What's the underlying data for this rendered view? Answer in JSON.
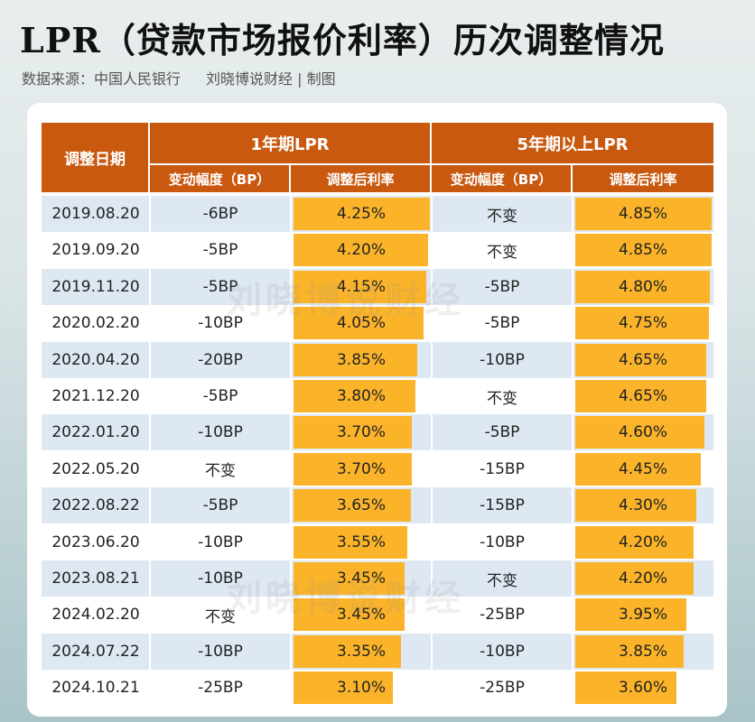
{
  "title": "LPR（贷款市场报价利率）历次调整情况",
  "subtitle": {
    "source": "数据来源：中国人民银行",
    "credit": "刘晓博说财经 | 制图"
  },
  "watermark": "刘晓博说财经",
  "colors": {
    "header": "#c8590f",
    "bar": "#fbb429",
    "row_alt": "#dde8f3"
  },
  "table": {
    "headers": {
      "date": "调整日期",
      "group1": "1年期LPR",
      "group2": "5年期以上LPR",
      "change": "变动幅度（BP）",
      "rate": "调整后利率"
    },
    "rows": [
      {
        "date": "2019.08.20",
        "c1": "-6BP",
        "r1": "4.25%",
        "c5": "不变",
        "r5": "4.85%"
      },
      {
        "date": "2019.09.20",
        "c1": "-5BP",
        "r1": "4.20%",
        "c5": "不变",
        "r5": "4.85%"
      },
      {
        "date": "2019.11.20",
        "c1": "-5BP",
        "r1": "4.15%",
        "c5": "-5BP",
        "r5": "4.80%"
      },
      {
        "date": "2020.02.20",
        "c1": "-10BP",
        "r1": "4.05%",
        "c5": "-5BP",
        "r5": "4.75%"
      },
      {
        "date": "2020.04.20",
        "c1": "-20BP",
        "r1": "3.85%",
        "c5": "-10BP",
        "r5": "4.65%"
      },
      {
        "date": "2021.12.20",
        "c1": "-5BP",
        "r1": "3.80%",
        "c5": "不变",
        "r5": "4.65%"
      },
      {
        "date": "2022.01.20",
        "c1": "-10BP",
        "r1": "3.70%",
        "c5": "-5BP",
        "r5": "4.60%"
      },
      {
        "date": "2022.05.20",
        "c1": "不变",
        "r1": "3.70%",
        "c5": "-15BP",
        "r5": "4.45%"
      },
      {
        "date": "2022.08.22",
        "c1": "-5BP",
        "r1": "3.65%",
        "c5": "-15BP",
        "r5": "4.30%"
      },
      {
        "date": "2023.06.20",
        "c1": "-10BP",
        "r1": "3.55%",
        "c5": "-10BP",
        "r5": "4.20%"
      },
      {
        "date": "2023.08.21",
        "c1": "-10BP",
        "r1": "3.45%",
        "c5": "不变",
        "r5": "4.20%"
      },
      {
        "date": "2024.02.20",
        "c1": "不变",
        "r1": "3.45%",
        "c5": "-25BP",
        "r5": "3.95%"
      },
      {
        "date": "2024.07.22",
        "c1": "-10BP",
        "r1": "3.35%",
        "c5": "-10BP",
        "r5": "3.85%"
      },
      {
        "date": "2024.10.21",
        "c1": "-25BP",
        "r1": "3.10%",
        "c5": "-25BP",
        "r5": "3.60%"
      }
    ]
  }
}
